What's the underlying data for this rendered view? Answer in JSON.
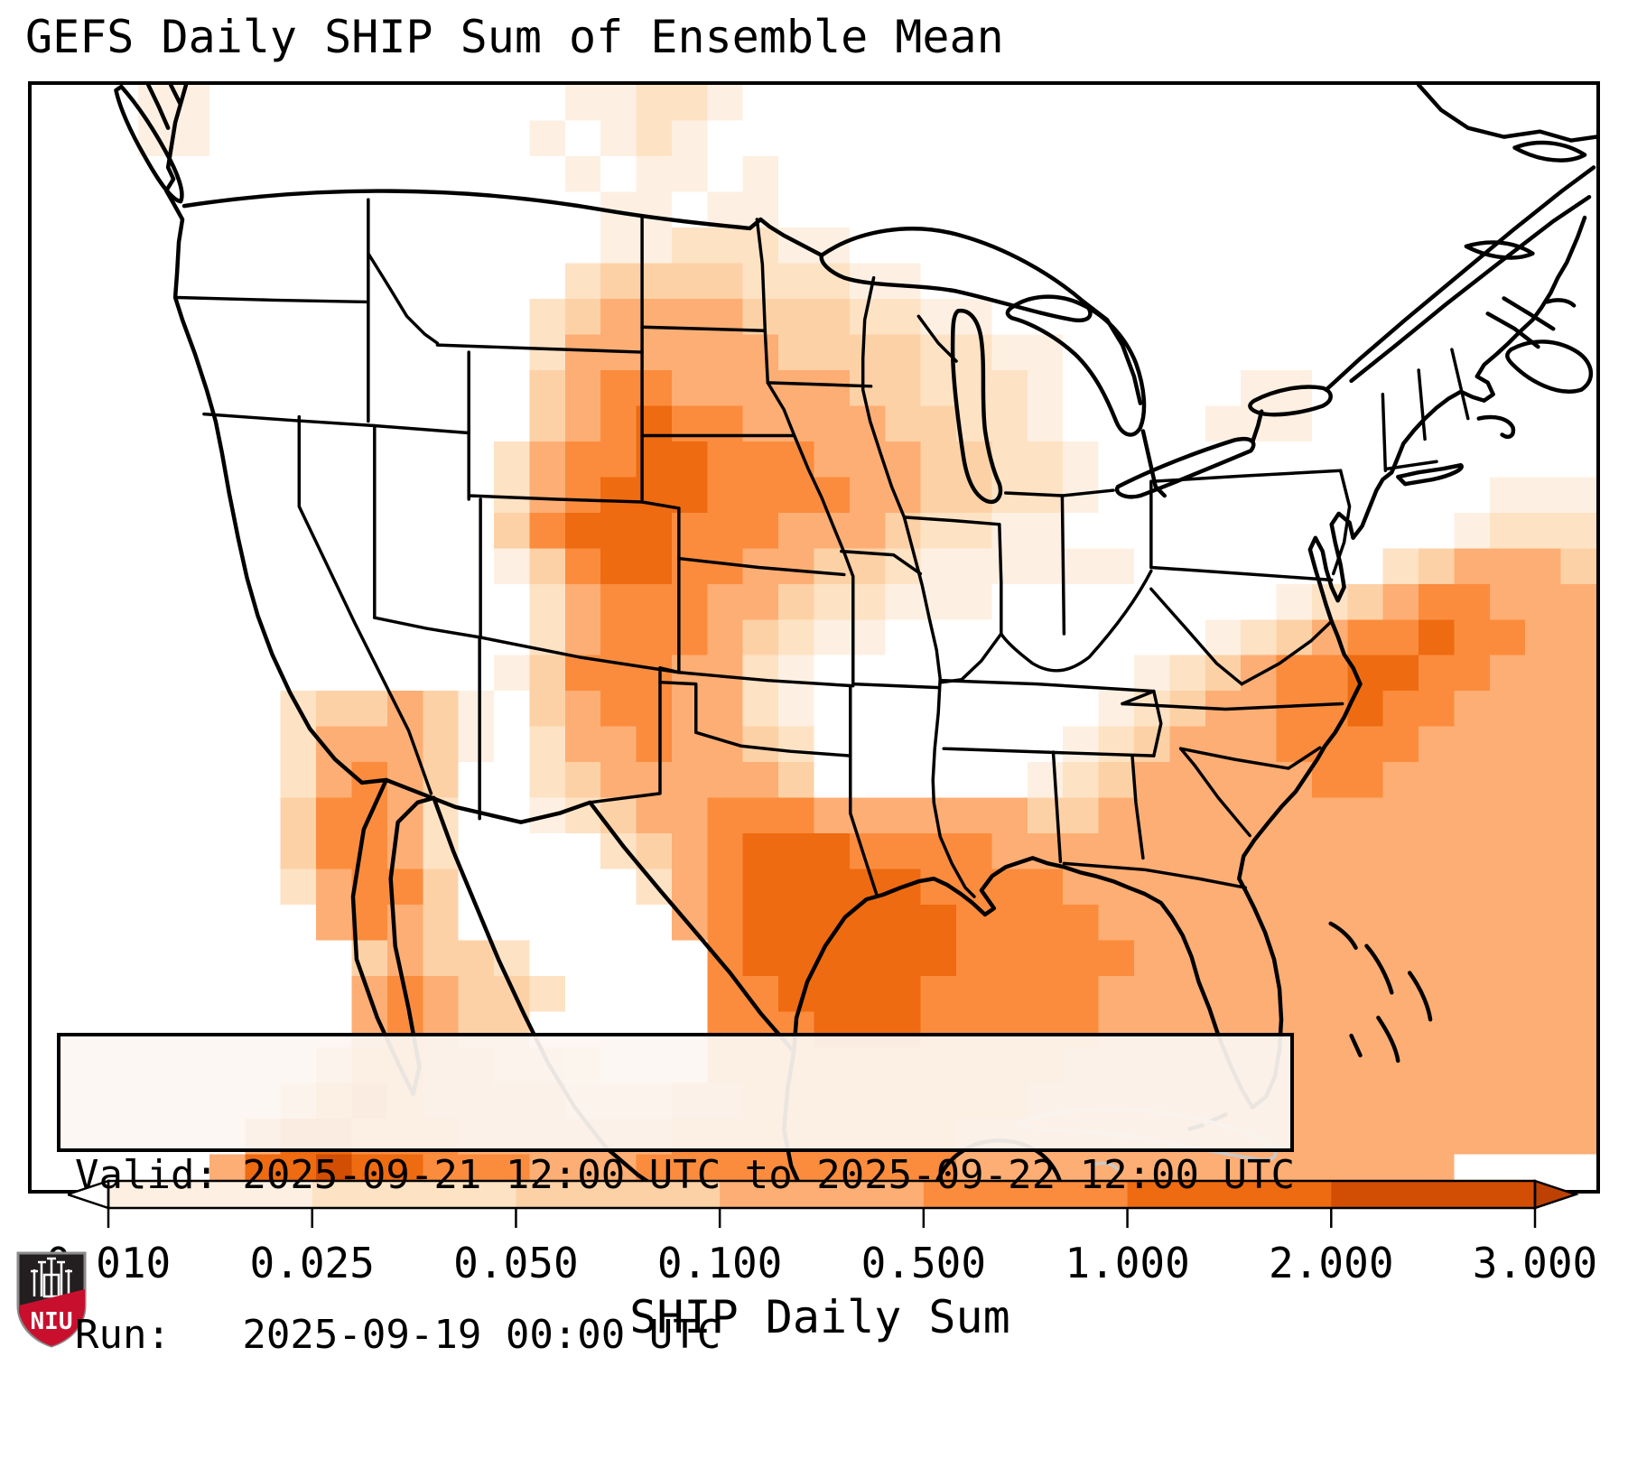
{
  "title": "GEFS Daily SHIP Sum of Ensemble Mean",
  "info_box": {
    "valid_line": "Valid: 2025-09-21 12:00 UTC to 2025-09-22 12:00 UTC",
    "run_line": "Run:   2025-09-19 00:00 UTC"
  },
  "colorbar": {
    "label": "SHIP Daily Sum",
    "tick_labels": [
      "0.010",
      "0.025",
      "0.050",
      "0.100",
      "0.500",
      "1.000",
      "2.000",
      "3.000"
    ],
    "segment_colors": [
      "#fdf0e2",
      "#fde2c4",
      "#fdd1a6",
      "#fdae74",
      "#fb8c3d",
      "#ee6b11",
      "#d14e04"
    ],
    "left_arrow_color": "#ffffff",
    "right_arrow_color": "#bd4103",
    "outline_color": "#000000"
  },
  "logo": {
    "text": "NIU",
    "red": "#c8102e",
    "dark": "#231f20"
  },
  "chart_data": {
    "type": "heatmap",
    "title": "GEFS Daily SHIP Sum of Ensemble Mean",
    "variable": "SHIP Daily Sum",
    "valid": "2025-09-21 12:00 UTC to 2025-09-22 12:00 UTC",
    "run": "2025-09-19 00:00 UTC",
    "region": "CONUS / northern Mexico / western Atlantic",
    "legend_position": "bottom",
    "scale_values": [
      0.01,
      0.025,
      0.05,
      0.1,
      0.5,
      1.0,
      2.0,
      3.0
    ],
    "palette": {
      "1": "#fdf0e2",
      "2": "#fde2c4",
      "3": "#fdd1a6",
      "4": "#fdae74",
      "5": "#fb8c3d",
      "6": "#ee6b11",
      "7": "#d14e04"
    },
    "grid_cols": 44,
    "grid_rows": 31,
    "grid": [
      "...11..........11221........................",
      "...11.........1.121.........................",
      "...............1.11.1.......................",
      "................11.11.......................",
      "................1122211.....................",
      "...............2333322211...................",
      "..............2344443332211.................",
      "..............244444433332211...............",
      "..............345544444332221.....11........",
      "..............345655444433221....111........",
      ".............24556655544433221..............",
      ".............24566655554433221...........111",
      ".............3566655544432211...........1222",
      ".............135665544332111111.......234443",
      "..............2455544322111........123455444",
      "..............2455543211.........12345565544",
      ".............135554421.........1234556655444",
      ".......233431.34554421........12344556554444",
      ".......244431.24454432.......123444555544444",
      ".......24543..23444443......1234444455444444",
      ".......35542..123445554444443344444444444444",
      ".......35542....23456665555444444444444444444",
      ".......24553.....245666665555444444444444444",
      "........4543......45666666555544444444444444",
      ".........34332.....5666666555554444444444444",
      ".........454332....5566665555544444444444444",
      ".........45433.....5556665555544444444444444",
      "........35544332...5555555555444444444444444",
      ".......3565444433344555555554444444444444444",
      "......46655544444455555555444444444444444444",
      ".....46676655544455555555544444444444444...."
    ]
  }
}
